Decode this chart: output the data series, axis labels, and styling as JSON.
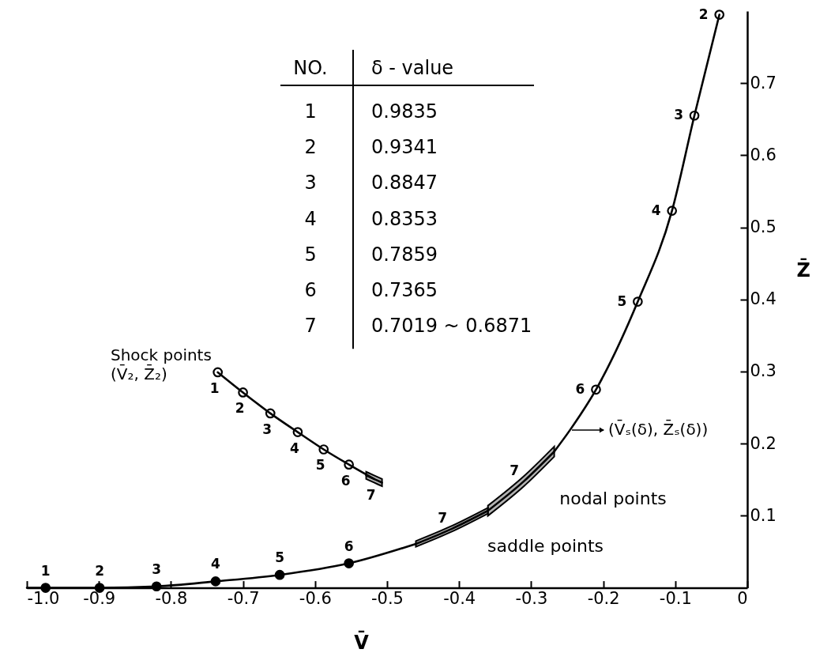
{
  "chart_data": {
    "type": "line",
    "xlabel": "V̄",
    "ylabel": "Z̄",
    "xlim": [
      -1.0,
      0
    ],
    "ylim": [
      0,
      0.8
    ],
    "xticks": [
      {
        "value": -1.0,
        "label": "-1.0"
      },
      -0.9,
      -0.8,
      -0.7,
      -0.6,
      -0.5,
      -0.4,
      -0.3,
      -0.2,
      -0.1,
      0
    ],
    "yticks": [
      0.1,
      0.2,
      0.3,
      0.4,
      0.5,
      0.6,
      0.7
    ],
    "line_style": "solid",
    "series": [
      {
        "color": "#000000",
        "x": [
          -1.0,
          -0.9,
          -0.82,
          -0.738,
          -0.649,
          -0.553,
          -0.46
        ],
        "values": [
          0,
          0,
          0.002,
          0.009,
          0.018,
          0.034,
          0.061
        ]
      },
      {
        "color": "#000000",
        "x": [
          -0.46,
          -0.41,
          -0.36
        ],
        "values": [
          0.061,
          0.082,
          0.107
        ],
        "lower": [
          0.057,
          0.078,
          0.103
        ],
        "upper": [
          0.065,
          0.086,
          0.111
        ]
      },
      {
        "color": "#000000",
        "x": [
          -0.36,
          -0.31,
          -0.268
        ],
        "values": [
          0.107,
          0.148,
          0.189
        ],
        "lower": [
          0.1,
          0.141,
          0.182
        ],
        "upper": [
          0.114,
          0.155,
          0.196
        ]
      },
      {
        "name": "(V̄ₛ(δ), Z̄ₛ(δ))",
        "color": "#000000",
        "x": [
          -0.268,
          -0.246,
          -0.21,
          -0.152,
          -0.1045,
          -0.0734,
          -0.0387
        ],
        "values": [
          0.189,
          0.219,
          0.275,
          0.397,
          0.523,
          0.655,
          0.795
        ]
      },
      {
        "type": "scatter",
        "color": "#000000",
        "x": [
          -0.974,
          -0.899,
          -0.82,
          -0.738,
          -0.649,
          -0.553
        ],
        "values": [
          0,
          0,
          0.002,
          0.009,
          0.018,
          0.034
        ]
      },
      {
        "type": "scatter",
        "color": "#ffffff",
        "x": [
          -0.21,
          -0.152,
          -0.1045,
          -0.0734,
          -0.0387
        ],
        "values": [
          0.275,
          0.397,
          0.523,
          0.655,
          0.795
        ]
      },
      {
        "name": "Shock points\n(V̄₂, Z̄₂)",
        "color": "#000000",
        "x": [
          -0.735,
          -0.7,
          -0.662,
          -0.624,
          -0.588,
          -0.553,
          -0.518
        ],
        "values": [
          0.299,
          0.271,
          0.242,
          0.216,
          0.192,
          0.171,
          0.151
        ]
      },
      {
        "type": "scatter",
        "color": "#ffffff",
        "x": [
          -0.735,
          -0.7,
          -0.662,
          -0.624,
          -0.588,
          -0.553
        ],
        "values": [
          0.299,
          0.271,
          0.242,
          0.216,
          0.192,
          0.171
        ]
      },
      {
        "color": "#000000",
        "x": [
          -0.529,
          -0.518,
          -0.507
        ],
        "values": [
          0.156,
          0.151,
          0.146
        ],
        "lower": [
          0.151,
          0.146,
          0.141
        ],
        "upper": [
          0.161,
          0.156,
          0.151
        ]
      }
    ],
    "annotations": [
      "NO.",
      "δ - value",
      "1",
      "0.9835",
      "2",
      "0.9341",
      "3",
      "0.8847",
      "4",
      "0.8353",
      "5",
      "0.7859",
      "6",
      "0.7365",
      "7",
      "0.7019 ~ 0.6871",
      {
        "text": "1",
        "x": -0.974,
        "y": 0
      },
      {
        "text": "2",
        "x": -0.899,
        "y": 0
      },
      {
        "text": "3",
        "x": -0.82,
        "y": 0.002
      },
      {
        "text": "4",
        "x": -0.738,
        "y": 0.009
      },
      {
        "text": "5",
        "x": -0.649,
        "y": 0.018
      },
      {
        "text": "6",
        "x": -0.553,
        "y": 0.034
      },
      {
        "text": "2",
        "x": -0.0387,
        "y": 0.795
      },
      {
        "text": "3",
        "x": -0.0734,
        "y": 0.655
      },
      {
        "text": "4",
        "x": -0.1045,
        "y": 0.523
      },
      {
        "text": "5",
        "x": -0.152,
        "y": 0.397
      },
      {
        "text": "6",
        "x": -0.21,
        "y": 0.275
      },
      {
        "text": "7",
        "x": -0.41,
        "y": 0.082
      },
      {
        "text": "7",
        "x": -0.31,
        "y": 0.148
      },
      {
        "text": "saddle points",
        "x": -0.41,
        "y": 0.082
      },
      {
        "text": "nodal points",
        "x": -0.31,
        "y": 0.148
      },
      {
        "text": "1",
        "x": -0.735,
        "y": 0.299
      },
      {
        "text": "2",
        "x": -0.7,
        "y": 0.271
      },
      {
        "text": "3",
        "x": -0.662,
        "y": 0.242
      },
      {
        "text": "4",
        "x": -0.624,
        "y": 0.216
      },
      {
        "text": "5",
        "x": -0.588,
        "y": 0.192
      },
      {
        "text": "6",
        "x": -0.553,
        "y": 0.171
      },
      {
        "text": "7",
        "x": -0.518,
        "y": 0.151
      }
    ]
  }
}
